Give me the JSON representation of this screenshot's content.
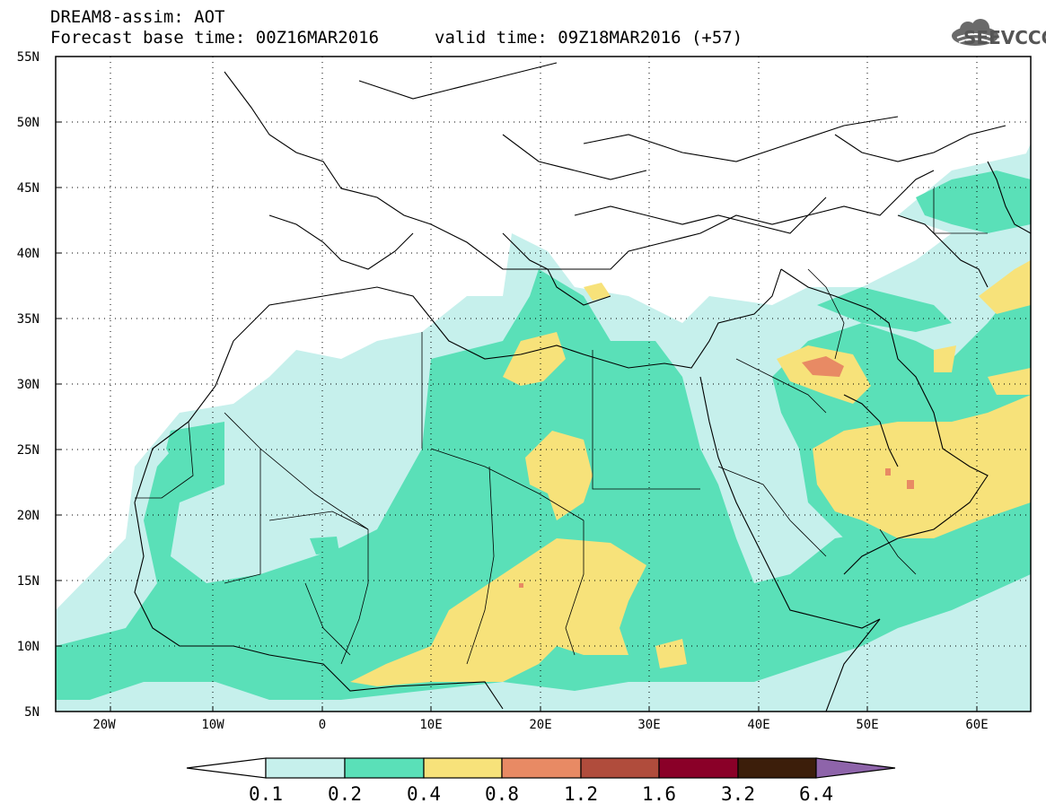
{
  "header": {
    "title": "DREAM8-assim: AOT",
    "base_time": "Forecast base time: 00Z16MAR2016",
    "valid_time": "valid time: 09Z18MAR2016 (+57)",
    "logo_text": "SEEVCCC",
    "logo_icon": "cloud-icon"
  },
  "map": {
    "lon_range": [
      -25,
      65
    ],
    "lat_range": [
      5,
      55
    ],
    "lat_ticks": [
      "55N",
      "50N",
      "45N",
      "40N",
      "35N",
      "30N",
      "25N",
      "20N",
      "15N",
      "10N",
      "5N"
    ],
    "lon_ticks": [
      "20W",
      "10W",
      "0",
      "10E",
      "20E",
      "30E",
      "40E",
      "50E",
      "60E"
    ],
    "grid": "dotted"
  },
  "legend": {
    "labels": [
      "0.1",
      "0.2",
      "0.4",
      "0.8",
      "1.2",
      "1.6",
      "3.2",
      "6.4"
    ],
    "colors": [
      "#ffffff",
      "#c6f0ec",
      "#5ae0b8",
      "#f7e27a",
      "#e88a64",
      "#b04c3c",
      "#8a0028",
      "#3c1e0a",
      "#8e64aa"
    ]
  }
}
